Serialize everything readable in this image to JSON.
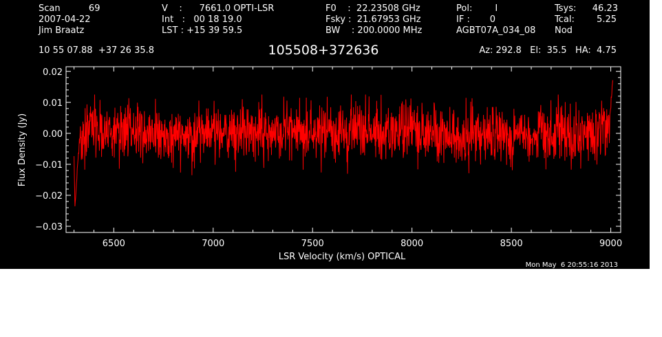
{
  "header": {
    "col1": [
      "Scan          69",
      "2007-04-22",
      "Jim Braatz"
    ],
    "col2": [
      "V    :      7661.0 OPTI-LSR",
      "Int   :   00 18 19.0",
      "LST : +15 39 59.5"
    ],
    "col3": [
      "F0    :  22.23508 GHz",
      "Fsky :  21.67953 GHz",
      "BW    : 200.0000 MHz"
    ],
    "col4": [
      "Pol:        I",
      "IF :       0",
      "AGBT07A_034_08"
    ],
    "col5_labels": [
      "Tsys:",
      "Tcal:",
      "Nod"
    ],
    "col5_values": [
      "46.23",
      "5.25",
      ""
    ],
    "coords": "10 55 07.88  +37 26 35.8",
    "source": "105508+372636",
    "az_el_ha": "Az: 292.8   El:  35.5   HA:  4.75",
    "timestamp": "Mon May  6 20:55:16 2013"
  },
  "colors": {
    "background": "#000000",
    "axes": "#ffffff",
    "series": "#ff0000"
  },
  "chart_data": {
    "type": "line",
    "title": "",
    "xlabel": "LSR Velocity (km/s) OPTICAL",
    "ylabel": "Flux Density (Jy)",
    "xlim": [
      6260,
      9050
    ],
    "ylim": [
      -0.032,
      0.0215
    ],
    "xticks": [
      6500,
      7000,
      7500,
      8000,
      8500,
      9000
    ],
    "yticks": [
      -0.03,
      -0.02,
      -0.01,
      0.0,
      0.01,
      0.02
    ],
    "ytick_labels": [
      "−0.03",
      "−0.02",
      "−0.01",
      "0.00",
      "0.01",
      "0.02"
    ],
    "grid": false,
    "series": [
      {
        "name": "",
        "x_start": 6300,
        "x_end": 9010,
        "noise_rms_jy": 0.0045,
        "peak_max_jy": 0.018,
        "trough_min_jy": -0.024,
        "x": [
          6300,
          6305,
          6310,
          6315,
          6320,
          6325,
          6330,
          6340,
          6360,
          6400,
          6500,
          6700,
          7000,
          7300,
          7500,
          7800,
          8000,
          8300,
          8500,
          8800,
          8950,
          8980,
          8990,
          9000,
          9005,
          9010
        ],
        "y": [
          -0.008,
          -0.024,
          -0.019,
          -0.013,
          -0.01,
          -0.004,
          -0.001,
          0.0,
          0.001,
          0.0,
          0.0,
          0.0,
          0.0,
          0.0,
          0.0,
          0.0,
          0.0,
          0.0,
          0.0,
          0.0,
          0.001,
          0.002,
          0.004,
          0.008,
          0.014,
          0.018
        ]
      }
    ]
  }
}
